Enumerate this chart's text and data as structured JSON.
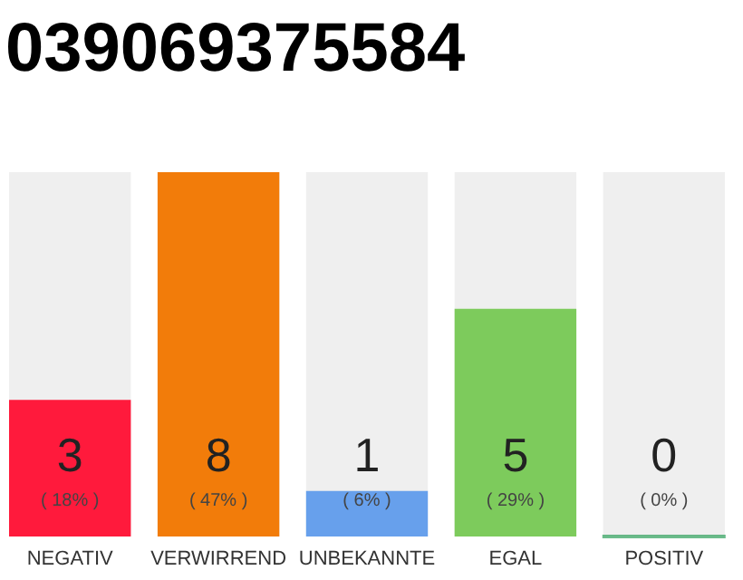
{
  "chart_data": {
    "type": "bar",
    "title": "039069375584",
    "categories": [
      "NEGATIV",
      "VERWIRREND",
      "UNBEKANNTE",
      "EGAL",
      "POSITIV"
    ],
    "values": [
      3,
      8,
      1,
      5,
      0
    ],
    "colors": [
      "#ff1a3c",
      "#f27c0a",
      "#67a0ec",
      "#7dcb5c",
      "#2ca05a"
    ],
    "ylim": [
      0,
      8
    ],
    "data_labels": true,
    "grid": false,
    "tick_labels": "x",
    "annotations": [
      "( 18% )",
      "( 47% )",
      "( 6% )",
      "( 29% )",
      "( 0% )"
    ]
  }
}
